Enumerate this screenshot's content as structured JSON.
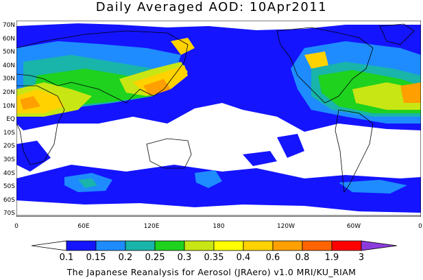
{
  "title": "Daily Averaged AOD: 10Apr2011",
  "lat_labels": [
    "70N",
    "60N",
    "50N",
    "40N",
    "30N",
    "20N",
    "10N",
    "EQ",
    "10S",
    "20S",
    "30S",
    "40S",
    "50S",
    "60S",
    "70S"
  ],
  "lon_labels": [
    "0",
    "60E",
    "120E",
    "180",
    "120W",
    "60W",
    "0"
  ],
  "colorbar": {
    "labels": [
      "0.1",
      "0.15",
      "0.2",
      "0.25",
      "0.3",
      "0.35",
      "0.4",
      "0.6",
      "0.8",
      "1.9",
      "3"
    ],
    "colors": [
      "#ffffff",
      "#1414ff",
      "#1e8cff",
      "#19b4aa",
      "#1ed21e",
      "#c8e614",
      "#ffff00",
      "#ffd200",
      "#ffa000",
      "#ff6400",
      "#ff0000",
      "#8c3cdc"
    ]
  },
  "credit": "The Japanese Reanalysis for Aerosol (JRAero) v1.0 MRI/KU_RIAM"
}
